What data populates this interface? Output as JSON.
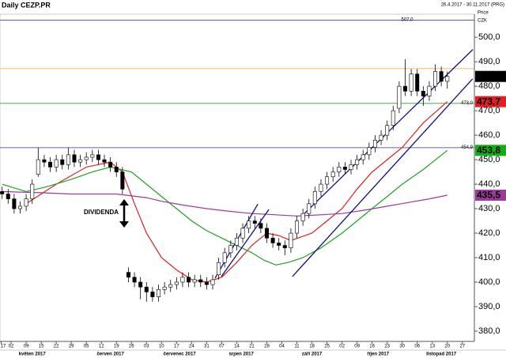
{
  "chart_data": {
    "type": "candlestick",
    "title": "Daily CEZP.PR",
    "date_range": "26.4.2017 - 30.11.2017 (PRG)",
    "y_axis_label": "Price",
    "y_axis_unit": "CZK",
    "annotation": "DIVIDENDA",
    "xlim": [
      -3.7,
      154
    ],
    "ylim": [
      375.8,
      509.4
    ],
    "yticks": [
      {
        "value": 380,
        "label": "380,0"
      },
      {
        "value": 390,
        "label": "390,0"
      },
      {
        "value": 400,
        "label": "400,0"
      },
      {
        "value": 410,
        "label": "410,0"
      },
      {
        "value": 420,
        "label": "420,0"
      },
      {
        "value": 430,
        "label": "430,0"
      },
      {
        "value": 440,
        "label": "440,0"
      },
      {
        "value": 450,
        "label": "450,0"
      },
      {
        "value": 460,
        "label": "460,0"
      },
      {
        "value": 470,
        "label": "470,0"
      },
      {
        "value": 480,
        "label": "480,0"
      },
      {
        "value": 490,
        "label": "490,0"
      },
      {
        "value": 500,
        "label": "500,0"
      }
    ],
    "xticks": [
      {
        "value": -3.3,
        "label": "4 17"
      },
      {
        "value": 0,
        "label": "02"
      },
      {
        "value": 5,
        "label": "09"
      },
      {
        "value": 10,
        "label": "15"
      },
      {
        "value": 15,
        "label": "22"
      },
      {
        "value": 20,
        "label": "29"
      },
      {
        "value": 25,
        "label": "05"
      },
      {
        "value": 30,
        "label": "12"
      },
      {
        "value": 35,
        "label": "19"
      },
      {
        "value": 40,
        "label": "26"
      },
      {
        "value": 45,
        "label": "03"
      },
      {
        "value": 50,
        "label": "10"
      },
      {
        "value": 55,
        "label": "17"
      },
      {
        "value": 60,
        "label": "24"
      },
      {
        "value": 65,
        "label": "31"
      },
      {
        "value": 70,
        "label": "07"
      },
      {
        "value": 75,
        "label": "14"
      },
      {
        "value": 80,
        "label": "21"
      },
      {
        "value": 85,
        "label": "28"
      },
      {
        "value": 90,
        "label": "04"
      },
      {
        "value": 95,
        "label": "11"
      },
      {
        "value": 100,
        "label": "18"
      },
      {
        "value": 105,
        "label": "25"
      },
      {
        "value": 110,
        "label": "02"
      },
      {
        "value": 115,
        "label": "09"
      },
      {
        "value": 120,
        "label": "16"
      },
      {
        "value": 125,
        "label": "23"
      },
      {
        "value": 130,
        "label": "30"
      },
      {
        "value": 135,
        "label": "06"
      },
      {
        "value": 140,
        "label": "13"
      },
      {
        "value": 145,
        "label": "20"
      },
      {
        "value": 150,
        "label": "27"
      }
    ],
    "month_ticks": [
      {
        "value": 7,
        "label": "květen 2017"
      },
      {
        "value": 33,
        "label": "červen 2017"
      },
      {
        "value": 56,
        "label": "červenec 2017"
      },
      {
        "value": 76.5,
        "label": "srpen 2017"
      },
      {
        "value": 100,
        "label": "září 2017"
      },
      {
        "value": 122,
        "label": "říjen 2017"
      },
      {
        "value": 143,
        "label": "listopad 2017"
      }
    ],
    "x": [
      -3,
      -1,
      1,
      3,
      5,
      7,
      9,
      11,
      13,
      15,
      17,
      19,
      21,
      23,
      25,
      27,
      29,
      31,
      33,
      35,
      37,
      39,
      41,
      43,
      45,
      47,
      49,
      51,
      53,
      55,
      57,
      59,
      61,
      63,
      65,
      67,
      69,
      71,
      73,
      75,
      77,
      79,
      81,
      83,
      85,
      87,
      89,
      91,
      93,
      95,
      97,
      99,
      101,
      103,
      105,
      107,
      109,
      111,
      113,
      115,
      117,
      119,
      121,
      123,
      125,
      127,
      129,
      131,
      133,
      135,
      137,
      139,
      141,
      143,
      145
    ],
    "open": [
      437,
      436,
      434,
      430,
      431,
      434,
      444,
      450,
      449,
      447,
      450,
      448,
      452,
      449,
      450,
      451,
      452,
      450,
      449,
      447,
      445,
      404,
      402,
      400,
      398,
      396,
      394,
      397,
      398,
      399,
      400,
      402,
      400,
      401,
      400,
      399,
      403,
      408,
      412,
      415,
      418,
      422,
      425,
      424,
      422,
      418,
      416,
      415,
      414,
      420,
      425,
      428,
      432,
      437,
      440,
      443,
      445,
      447,
      446,
      448,
      450,
      452,
      455,
      458,
      460,
      464,
      471,
      480,
      478,
      485,
      478,
      476,
      480,
      486,
      482
    ],
    "high": [
      439,
      438,
      436,
      433,
      436,
      442,
      455,
      452,
      451,
      452,
      452,
      455,
      454,
      452,
      453,
      454,
      454,
      452,
      451,
      449,
      447,
      406,
      404,
      402,
      400,
      398,
      399,
      400,
      401,
      402,
      404,
      404,
      403,
      403,
      402,
      403,
      410,
      414,
      417,
      420,
      424,
      427,
      427,
      426,
      424,
      420,
      418,
      417,
      422,
      427,
      430,
      434,
      439,
      442,
      445,
      447,
      449,
      449,
      450,
      452,
      454,
      457,
      460,
      462,
      466,
      472,
      482,
      491,
      487,
      487,
      480,
      482,
      489,
      488,
      486
    ],
    "low": [
      434,
      432,
      428,
      428,
      429,
      432,
      443,
      447,
      445,
      445,
      446,
      446,
      447,
      447,
      448,
      449,
      448,
      447,
      445,
      443,
      436,
      400,
      398,
      393,
      392,
      392,
      392,
      395,
      396,
      397,
      398,
      398,
      398,
      398,
      397,
      397,
      401,
      406,
      410,
      413,
      416,
      420,
      422,
      420,
      416,
      414,
      413,
      411,
      412,
      418,
      423,
      426,
      430,
      435,
      438,
      441,
      443,
      444,
      444,
      446,
      448,
      450,
      453,
      456,
      458,
      462,
      469,
      476,
      476,
      476,
      472,
      474,
      478,
      480,
      479
    ],
    "close": [
      436,
      434,
      430,
      431,
      434,
      440,
      450,
      449,
      447,
      450,
      448,
      452,
      449,
      450,
      451,
      452,
      450,
      449,
      447,
      445,
      438,
      402,
      400,
      398,
      396,
      394,
      397,
      398,
      399,
      400,
      402,
      400,
      401,
      400,
      399,
      401,
      408,
      412,
      415,
      418,
      422,
      425,
      424,
      422,
      418,
      416,
      415,
      414,
      420,
      425,
      428,
      432,
      437,
      440,
      443,
      445,
      447,
      446,
      448,
      450,
      452,
      455,
      458,
      460,
      464,
      470,
      480,
      478,
      485,
      478,
      476,
      480,
      486,
      482,
      484
    ],
    "up_color": "#ffffff",
    "down_color": "#000000",
    "lines": [
      {
        "color": "#e02020",
        "x": [
          5,
          15,
          25,
          33,
          37,
          41,
          45,
          50,
          55,
          60,
          65,
          70,
          75,
          80,
          85,
          89,
          93,
          100,
          105,
          110,
          115,
          120,
          125,
          130,
          137,
          145
        ],
        "values": [
          432,
          440,
          447,
          449,
          445,
          432,
          420,
          410,
          405,
          401,
          400,
          402,
          408,
          415,
          420,
          419,
          417,
          420,
          425,
          430,
          438,
          445,
          450,
          455,
          465,
          473.7
        ]
      },
      {
        "color": "#20a020",
        "x": [
          -3,
          5,
          12,
          20,
          27,
          33,
          40,
          45,
          50,
          55,
          60,
          65,
          70,
          75,
          80,
          84,
          88,
          92,
          97,
          103,
          110,
          115,
          120,
          125,
          130,
          137,
          145
        ],
        "values": [
          440,
          437,
          439,
          442,
          445,
          447,
          445,
          440,
          435,
          430,
          425,
          421,
          418,
          415,
          412,
          409,
          407,
          408,
          410,
          414,
          420,
          425,
          430,
          435,
          440,
          446,
          453.8
        ]
      },
      {
        "color": "#9a3a9a",
        "x": [
          -3,
          10,
          20,
          35,
          45,
          50,
          57,
          65,
          72,
          80,
          88,
          95,
          103,
          110,
          118,
          125,
          132,
          139,
          145
        ],
        "values": [
          437,
          436.5,
          436,
          436,
          434.5,
          433,
          431.5,
          430,
          429,
          428,
          427.5,
          427,
          427.5,
          428,
          429.5,
          431,
          432.5,
          434,
          435.5
        ]
      },
      {
        "color": "#101080",
        "x": [
          97.5,
          153.5
        ],
        "values": [
          428,
          495
        ]
      },
      {
        "color": "#101080",
        "x": [
          93.5,
          153.4
        ],
        "values": [
          402.3,
          483
        ]
      },
      {
        "color": "#101080",
        "x": [
          67.8,
          82
        ],
        "values": [
          401.6,
          431.9
        ]
      },
      {
        "color": "#101080",
        "x": [
          69.9,
          85.7
        ],
        "values": [
          402.3,
          429.7
        ]
      }
    ],
    "hlines": [
      {
        "value": 507,
        "label": "507,0",
        "color": "#4040a0"
      },
      {
        "value": 487.2,
        "color": "#f0b060"
      },
      {
        "value": 473,
        "label": "473,0",
        "color": "#30a030"
      },
      {
        "value": 454.9,
        "label": "454,9",
        "color": "#3030a0"
      }
    ],
    "price_labels": [
      {
        "value": 484,
        "label": "484,0",
        "color": "#000000"
      },
      {
        "value": 473.7,
        "label": "473,7",
        "color": "#e02020"
      },
      {
        "value": 453.8,
        "label": "453,8",
        "color": "#10b010"
      },
      {
        "value": 435.5,
        "label": "435,5",
        "color": "#9a3a9a"
      }
    ]
  }
}
